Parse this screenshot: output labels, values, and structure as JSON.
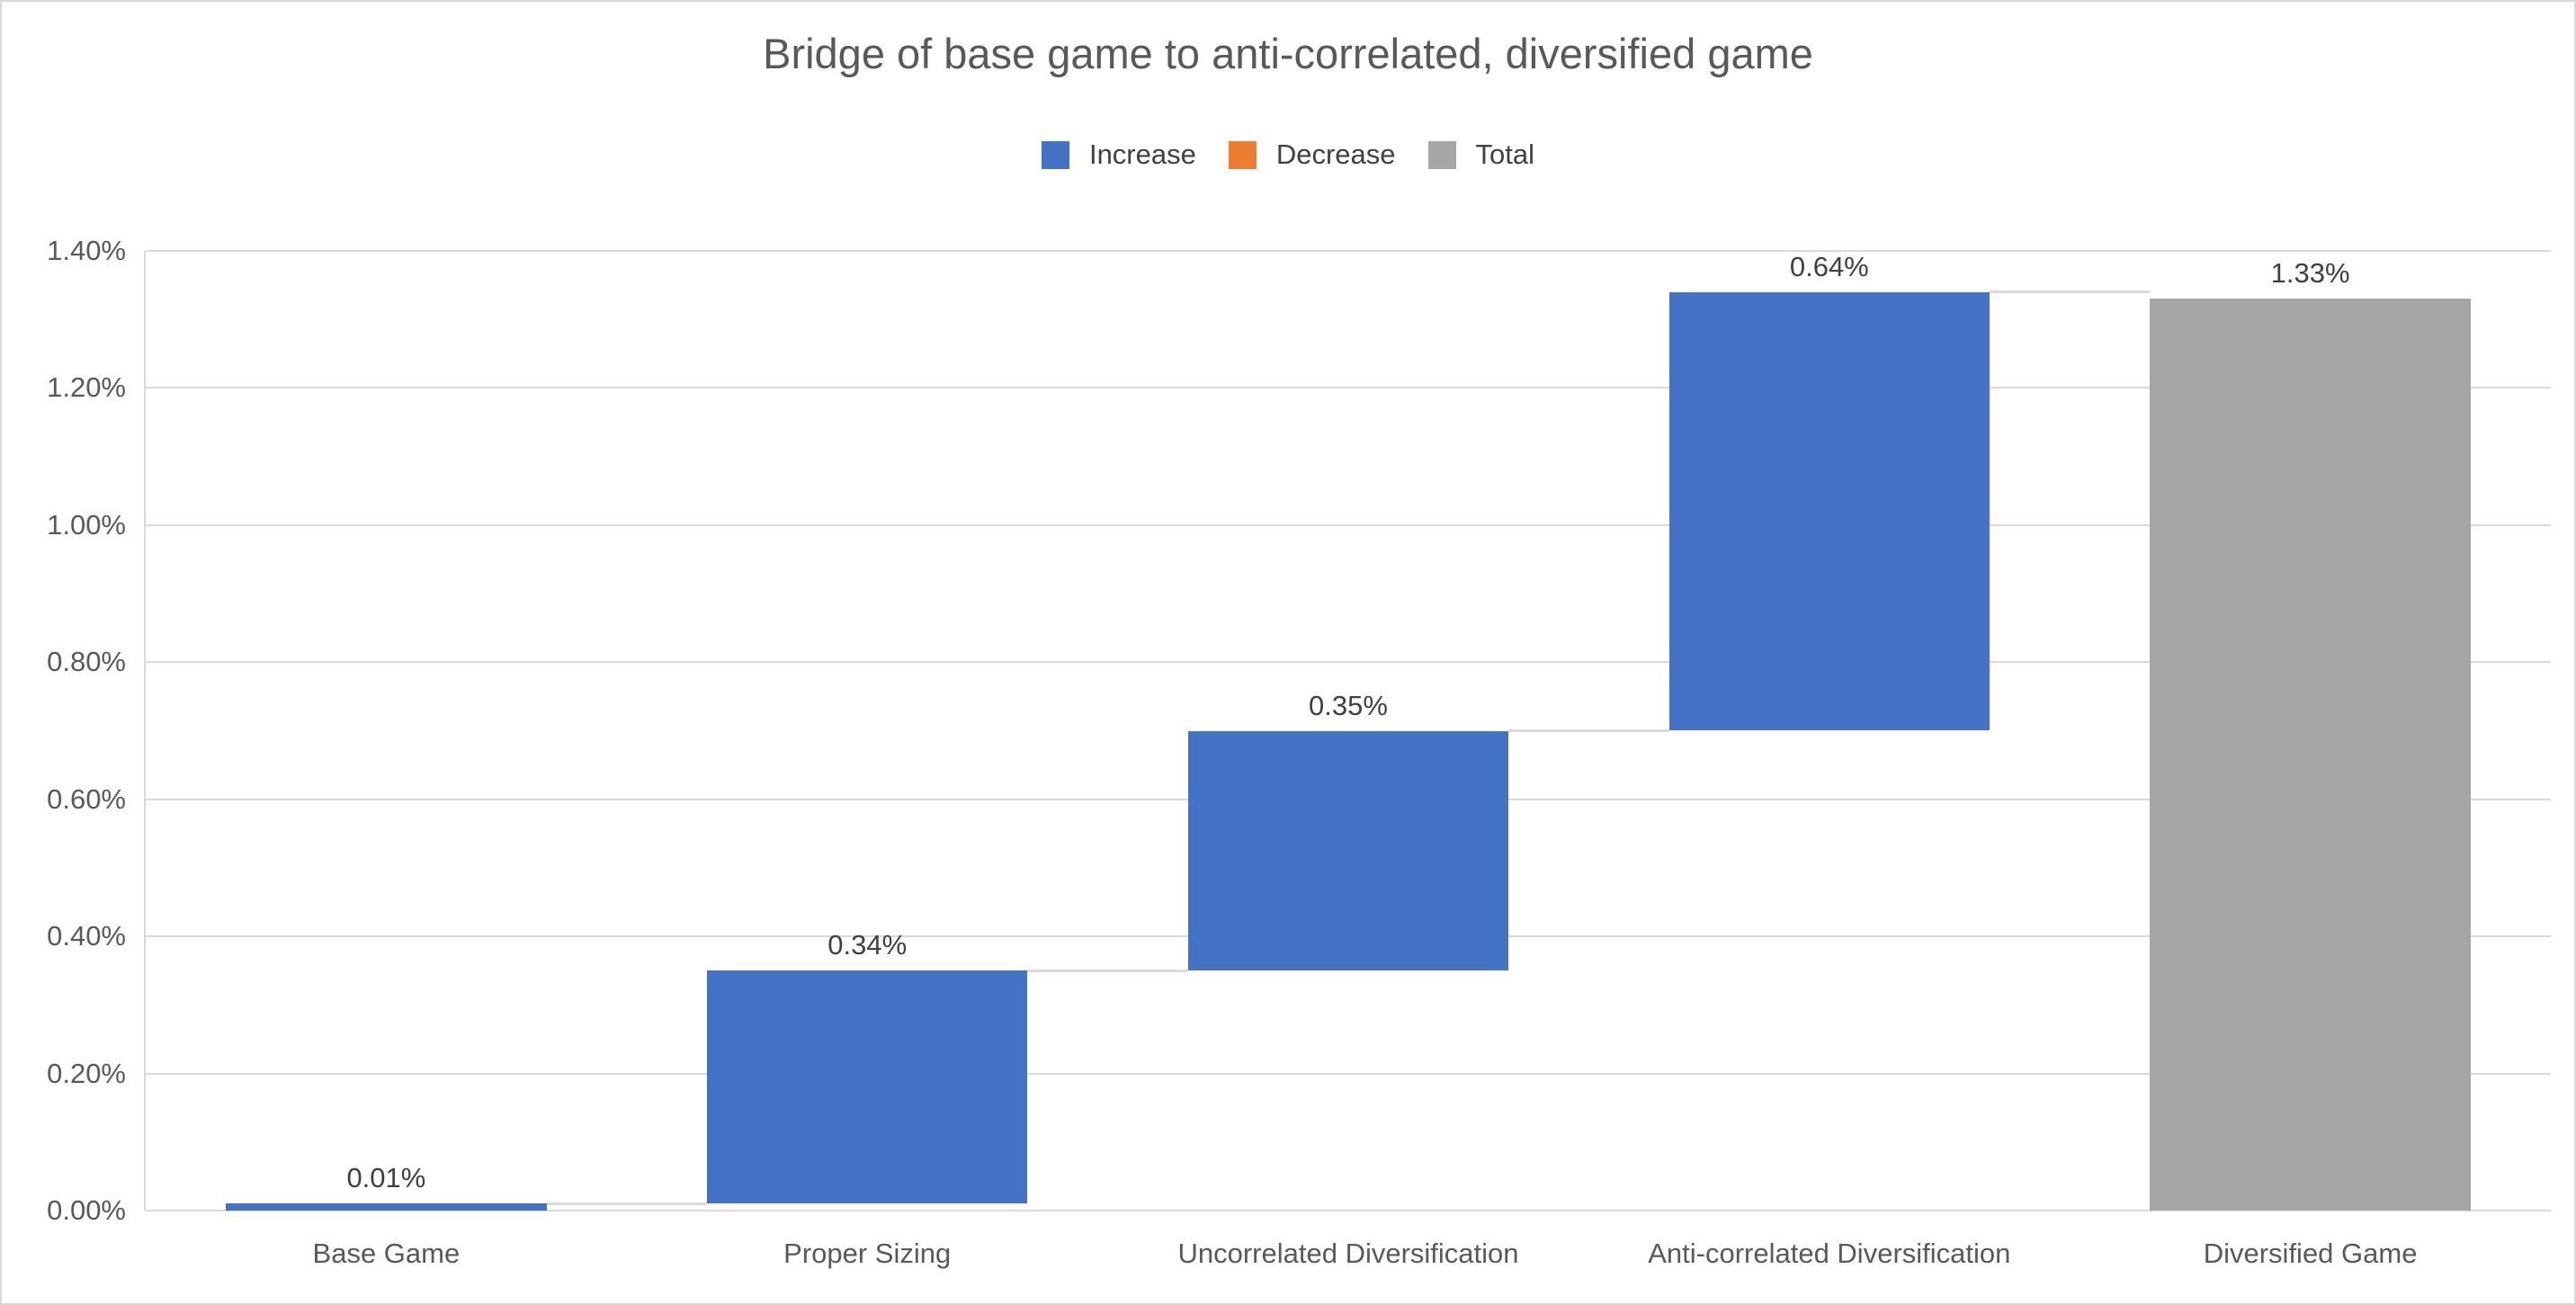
{
  "window": {
    "background": "#FFFFFF",
    "border_color": "#D9D9D9"
  },
  "chart_data": {
    "type": "bar",
    "subtype": "waterfall-bridge",
    "title": "Bridge of base game to anti-correlated, diversified game",
    "legend_position": "top",
    "legend": [
      {
        "label": "Increase",
        "color": "#4472C4"
      },
      {
        "label": "Decrease",
        "color": "#ED7D31"
      },
      {
        "label": "Total",
        "color": "#A5A5A5"
      }
    ],
    "categories": [
      "Base Game",
      "Proper Sizing",
      "Uncorrelated Diversification",
      "Anti-correlated Diversification",
      "Diversified Game"
    ],
    "bars": [
      {
        "category": "Base Game",
        "kind": "increase",
        "value": 0.01,
        "start": 0.0,
        "end": 0.01,
        "label": "0.01%"
      },
      {
        "category": "Proper Sizing",
        "kind": "increase",
        "value": 0.34,
        "start": 0.01,
        "end": 0.35,
        "label": "0.34%"
      },
      {
        "category": "Uncorrelated Diversification",
        "kind": "increase",
        "value": 0.35,
        "start": 0.35,
        "end": 0.7,
        "label": "0.35%"
      },
      {
        "category": "Anti-correlated Diversification",
        "kind": "increase",
        "value": 0.64,
        "start": 0.7,
        "end": 1.34,
        "label": "0.64%"
      },
      {
        "category": "Diversified Game",
        "kind": "total",
        "value": 1.33,
        "start": 0.0,
        "end": 1.33,
        "label": "1.33%"
      }
    ],
    "y_axis": {
      "min": 0.0,
      "max": 1.4,
      "step": 0.2,
      "ticks": [
        "0.00%",
        "0.20%",
        "0.40%",
        "0.60%",
        "0.80%",
        "1.00%",
        "1.20%",
        "1.40%"
      ],
      "unit": "percent"
    },
    "grid": {
      "horizontal": true,
      "vertical": false,
      "color": "#D9D9D9"
    },
    "colors": {
      "increase": "#4472C4",
      "decrease": "#ED7D31",
      "total": "#A5A5A5",
      "connector": "#D9D9D9",
      "gridline": "#D9D9D9",
      "title_text": "#595959",
      "axis_text": "#595959",
      "data_label_text": "#404040"
    }
  }
}
